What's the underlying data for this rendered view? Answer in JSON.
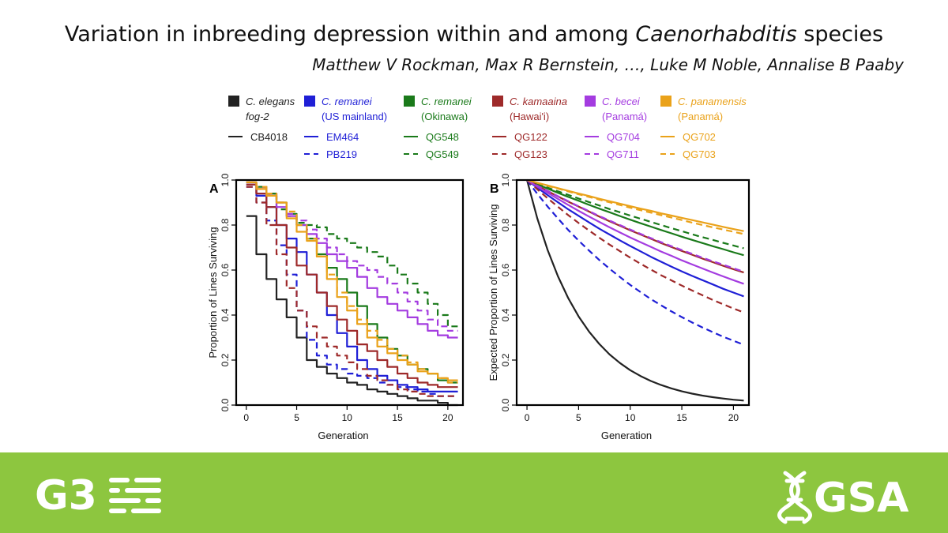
{
  "header": {
    "title_pre": "Variation in inbreeding depression within and among ",
    "title_italic": "Caenorhabditis",
    "title_post": " species",
    "authors": "Matthew V Rockman, Max R Bernstein, …, Luke M Noble, Annalise B Paaby"
  },
  "legend": {
    "groups": [
      {
        "species": "C. elegans",
        "sub": "fog-2",
        "sub_italic": true,
        "color": "#222222",
        "strains": [
          {
            "name": "CB4018",
            "dash": false
          }
        ]
      },
      {
        "species": "C. remanei",
        "sub": "(US mainland)",
        "sub_italic": false,
        "color": "#1f1fd6",
        "strains": [
          {
            "name": "EM464",
            "dash": false
          },
          {
            "name": "PB219",
            "dash": true
          }
        ]
      },
      {
        "species": "C. remanei",
        "sub": "(Okinawa)",
        "sub_italic": false,
        "color": "#1a7a1a",
        "strains": [
          {
            "name": "QG548",
            "dash": false
          },
          {
            "name": "QG549",
            "dash": true
          }
        ]
      },
      {
        "species": "C. kamaaina",
        "sub": "(Hawai'i)",
        "sub_italic": false,
        "color": "#9e2a2a",
        "strains": [
          {
            "name": "QG122",
            "dash": false
          },
          {
            "name": "QG123",
            "dash": true
          }
        ]
      },
      {
        "species": "C. becei",
        "sub": "(Panamá)",
        "sub_italic": false,
        "color": "#a43ce0",
        "strains": [
          {
            "name": "QG704",
            "dash": false
          },
          {
            "name": "QG711",
            "dash": true
          }
        ]
      },
      {
        "species": "C. panamensis",
        "sub": "(Panamá)",
        "sub_italic": false,
        "color": "#eaa21a",
        "strains": [
          {
            "name": "QG702",
            "dash": false
          },
          {
            "name": "QG703",
            "dash": true
          }
        ]
      }
    ]
  },
  "chart_data": [
    {
      "type": "line",
      "step": true,
      "panel_label": "A",
      "xlabel": "Generation",
      "ylabel": "Proportion of Lines Surviving",
      "xlim": [
        -1,
        21.5
      ],
      "ylim": [
        0,
        1
      ],
      "xticks": [
        "0",
        "5",
        "10",
        "15",
        "20"
      ],
      "yticks": [
        "0.0",
        "0.2",
        "0.4",
        "0.6",
        "0.8",
        "1.0"
      ],
      "x": [
        0,
        1,
        2,
        3,
        4,
        5,
        6,
        7,
        8,
        9,
        10,
        11,
        12,
        13,
        14,
        15,
        16,
        17,
        18,
        19,
        20,
        21
      ],
      "series": [
        {
          "name": "CB4018",
          "color": "#222222",
          "dash": false,
          "values": [
            0.84,
            0.67,
            0.56,
            0.47,
            0.39,
            0.3,
            0.2,
            0.17,
            0.14,
            0.12,
            0.1,
            0.09,
            0.07,
            0.06,
            0.05,
            0.04,
            0.03,
            0.02,
            0.02,
            0.01,
            0.0,
            0.0
          ]
        },
        {
          "name": "EM464",
          "color": "#1f1fd6",
          "dash": false,
          "values": [
            0.98,
            0.93,
            0.88,
            0.8,
            0.74,
            0.68,
            0.58,
            0.5,
            0.4,
            0.32,
            0.26,
            0.2,
            0.16,
            0.13,
            0.11,
            0.09,
            0.08,
            0.07,
            0.06,
            0.06,
            0.06,
            0.06
          ]
        },
        {
          "name": "PB219",
          "color": "#1f1fd6",
          "dash": true,
          "values": [
            0.97,
            0.9,
            0.82,
            0.71,
            0.58,
            0.42,
            0.29,
            0.22,
            0.18,
            0.16,
            0.14,
            0.13,
            0.12,
            0.1,
            0.09,
            0.08,
            0.07,
            0.06,
            0.05,
            0.04,
            0.04,
            0.04
          ]
        },
        {
          "name": "QG548",
          "color": "#1a7a1a",
          "dash": false,
          "values": [
            0.99,
            0.97,
            0.94,
            0.9,
            0.85,
            0.8,
            0.74,
            0.67,
            0.61,
            0.56,
            0.5,
            0.44,
            0.36,
            0.3,
            0.25,
            0.22,
            0.18,
            0.16,
            0.14,
            0.11,
            0.1,
            0.1
          ]
        },
        {
          "name": "QG549",
          "color": "#1a7a1a",
          "dash": true,
          "values": [
            0.99,
            0.97,
            0.93,
            0.87,
            0.84,
            0.81,
            0.8,
            0.79,
            0.76,
            0.74,
            0.72,
            0.7,
            0.68,
            0.66,
            0.62,
            0.58,
            0.54,
            0.5,
            0.45,
            0.4,
            0.35,
            0.34
          ]
        },
        {
          "name": "QG122",
          "color": "#9e2a2a",
          "dash": false,
          "values": [
            0.98,
            0.94,
            0.88,
            0.8,
            0.7,
            0.62,
            0.58,
            0.5,
            0.44,
            0.38,
            0.33,
            0.27,
            0.24,
            0.2,
            0.17,
            0.14,
            0.12,
            0.1,
            0.09,
            0.08,
            0.08,
            0.08
          ]
        },
        {
          "name": "QG123",
          "color": "#9e2a2a",
          "dash": true,
          "values": [
            0.97,
            0.9,
            0.8,
            0.67,
            0.52,
            0.42,
            0.35,
            0.3,
            0.26,
            0.22,
            0.19,
            0.16,
            0.13,
            0.11,
            0.09,
            0.07,
            0.06,
            0.05,
            0.04,
            0.04,
            0.04,
            0.04
          ]
        },
        {
          "name": "QG704",
          "color": "#a43ce0",
          "dash": false,
          "values": [
            0.99,
            0.96,
            0.93,
            0.88,
            0.84,
            0.8,
            0.76,
            0.72,
            0.67,
            0.64,
            0.61,
            0.57,
            0.52,
            0.48,
            0.45,
            0.42,
            0.39,
            0.36,
            0.33,
            0.31,
            0.3,
            0.3
          ]
        },
        {
          "name": "QG711",
          "color": "#a43ce0",
          "dash": true,
          "values": [
            0.99,
            0.97,
            0.94,
            0.9,
            0.85,
            0.82,
            0.78,
            0.74,
            0.7,
            0.67,
            0.64,
            0.62,
            0.6,
            0.57,
            0.54,
            0.5,
            0.46,
            0.42,
            0.38,
            0.35,
            0.33,
            0.33
          ]
        },
        {
          "name": "QG702",
          "color": "#eaa21a",
          "dash": false,
          "values": [
            0.99,
            0.96,
            0.93,
            0.9,
            0.83,
            0.77,
            0.73,
            0.66,
            0.56,
            0.48,
            0.42,
            0.36,
            0.3,
            0.26,
            0.23,
            0.2,
            0.18,
            0.15,
            0.14,
            0.12,
            0.11,
            0.11
          ]
        },
        {
          "name": "QG703",
          "color": "#eaa21a",
          "dash": true,
          "values": [
            0.99,
            0.97,
            0.94,
            0.9,
            0.86,
            0.8,
            0.74,
            0.66,
            0.58,
            0.5,
            0.44,
            0.38,
            0.33,
            0.29,
            0.25,
            0.22,
            0.19,
            0.16,
            0.14,
            0.12,
            0.1,
            0.1
          ]
        }
      ]
    },
    {
      "type": "line",
      "step": false,
      "panel_label": "B",
      "xlabel": "Generation",
      "ylabel": "Expected Proportion of Lines Surviving",
      "xlim": [
        -1,
        21.5
      ],
      "ylim": [
        0,
        1
      ],
      "xticks": [
        "0",
        "5",
        "10",
        "15",
        "20"
      ],
      "yticks": [
        "0.0",
        "0.2",
        "0.4",
        "0.6",
        "0.8",
        "1.0"
      ],
      "x": [
        0,
        1,
        2,
        3,
        4,
        5,
        6,
        7,
        8,
        9,
        10,
        11,
        12,
        13,
        14,
        15,
        16,
        17,
        18,
        19,
        20,
        21
      ],
      "series": [
        {
          "name": "CB4018",
          "color": "#222222",
          "dash": false,
          "values": [
            1.0,
            0.83,
            0.689,
            0.572,
            0.475,
            0.394,
            0.327,
            0.272,
            0.225,
            0.187,
            0.155,
            0.129,
            0.107,
            0.089,
            0.074,
            0.061,
            0.051,
            0.042,
            0.035,
            0.029,
            0.024,
            0.02
          ]
        },
        {
          "name": "EM464",
          "color": "#1f1fd6",
          "dash": false,
          "values": [
            1.0,
            0.966,
            0.933,
            0.901,
            0.87,
            0.841,
            0.812,
            0.784,
            0.758,
            0.732,
            0.707,
            0.683,
            0.659,
            0.637,
            0.615,
            0.594,
            0.574,
            0.555,
            0.536,
            0.517,
            0.5,
            0.483
          ]
        },
        {
          "name": "PB219",
          "color": "#1f1fd6",
          "dash": true,
          "values": [
            1.0,
            0.939,
            0.882,
            0.829,
            0.778,
            0.731,
            0.687,
            0.645,
            0.606,
            0.569,
            0.534,
            0.502,
            0.471,
            0.443,
            0.416,
            0.391,
            0.367,
            0.345,
            0.324,
            0.304,
            0.286,
            0.268
          ]
        },
        {
          "name": "QG548",
          "color": "#1a7a1a",
          "dash": false,
          "values": [
            1.0,
            0.981,
            0.962,
            0.943,
            0.925,
            0.908,
            0.89,
            0.873,
            0.857,
            0.84,
            0.824,
            0.808,
            0.793,
            0.778,
            0.763,
            0.748,
            0.734,
            0.72,
            0.706,
            0.693,
            0.679,
            0.666
          ]
        },
        {
          "name": "QG549",
          "color": "#1a7a1a",
          "dash": true,
          "values": [
            1.0,
            0.983,
            0.966,
            0.95,
            0.934,
            0.918,
            0.902,
            0.887,
            0.871,
            0.857,
            0.842,
            0.828,
            0.814,
            0.8,
            0.786,
            0.773,
            0.759,
            0.746,
            0.734,
            0.721,
            0.709,
            0.697
          ]
        },
        {
          "name": "QG122",
          "color": "#9e2a2a",
          "dash": false,
          "values": [
            1.0,
            0.975,
            0.951,
            0.927,
            0.904,
            0.882,
            0.86,
            0.838,
            0.817,
            0.797,
            0.777,
            0.758,
            0.739,
            0.72,
            0.702,
            0.685,
            0.668,
            0.651,
            0.635,
            0.619,
            0.604,
            0.589
          ]
        },
        {
          "name": "QG123",
          "color": "#9e2a2a",
          "dash": true,
          "values": [
            1.0,
            0.959,
            0.919,
            0.881,
            0.844,
            0.809,
            0.776,
            0.744,
            0.713,
            0.684,
            0.655,
            0.628,
            0.602,
            0.577,
            0.554,
            0.531,
            0.509,
            0.488,
            0.467,
            0.448,
            0.429,
            0.412
          ]
        },
        {
          "name": "QG704",
          "color": "#a43ce0",
          "dash": false,
          "values": [
            1.0,
            0.971,
            0.943,
            0.916,
            0.889,
            0.863,
            0.838,
            0.814,
            0.79,
            0.767,
            0.745,
            0.724,
            0.703,
            0.682,
            0.663,
            0.643,
            0.625,
            0.607,
            0.589,
            0.572,
            0.555,
            0.539
          ]
        },
        {
          "name": "QG711",
          "color": "#a43ce0",
          "dash": true,
          "values": [
            1.0,
            0.975,
            0.952,
            0.928,
            0.906,
            0.883,
            0.862,
            0.84,
            0.82,
            0.8,
            0.78,
            0.761,
            0.742,
            0.724,
            0.706,
            0.689,
            0.672,
            0.655,
            0.639,
            0.624,
            0.608,
            0.593
          ]
        },
        {
          "name": "QG702",
          "color": "#eaa21a",
          "dash": false,
          "values": [
            1.0,
            0.988,
            0.976,
            0.964,
            0.952,
            0.94,
            0.929,
            0.917,
            0.906,
            0.895,
            0.884,
            0.873,
            0.863,
            0.852,
            0.842,
            0.832,
            0.822,
            0.812,
            0.802,
            0.792,
            0.782,
            0.773
          ]
        },
        {
          "name": "QG703",
          "color": "#eaa21a",
          "dash": true,
          "values": [
            1.0,
            0.987,
            0.974,
            0.962,
            0.949,
            0.937,
            0.925,
            0.913,
            0.901,
            0.889,
            0.877,
            0.866,
            0.855,
            0.844,
            0.833,
            0.822,
            0.811,
            0.8,
            0.79,
            0.78,
            0.77,
            0.76
          ]
        }
      ]
    }
  ],
  "footer": {
    "bg_color": "#8dc63f",
    "left_logo": "G3",
    "right_logo": "GSA",
    "left_icon": "dna-bars-icon",
    "right_icon": "dna-helix-icon"
  }
}
